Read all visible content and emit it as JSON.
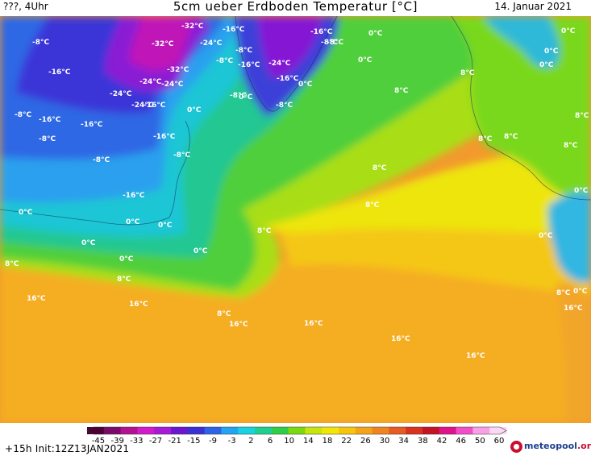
{
  "header": {
    "left_text": "???, 4Uhr",
    "title": "5cm ueber Erdboden Temperatur [°C]",
    "date": "14. Januar 2021"
  },
  "colorbar": {
    "ticks": [
      "-45",
      "-39",
      "-33",
      "-27",
      "-21",
      "-15",
      "-9",
      "-3",
      "2",
      "6",
      "10",
      "14",
      "18",
      "22",
      "26",
      "30",
      "34",
      "38",
      "42",
      "46",
      "50",
      "60"
    ],
    "colors": [
      "#4a0033",
      "#7a0a6a",
      "#b3118f",
      "#d21bc9",
      "#a71ad6",
      "#6b17d0",
      "#3b2fd6",
      "#2f63e6",
      "#22a4f0",
      "#18d2df",
      "#1fcf8f",
      "#2fce46",
      "#7cd80f",
      "#c6e410",
      "#f2e608",
      "#f6c60e",
      "#f4a41a",
      "#f0851f",
      "#e75c22",
      "#d8331f",
      "#c41424",
      "#e0148a",
      "#f24ec8",
      "#f7a0e6",
      "#fbd8f4"
    ]
  },
  "map_labels": [
    {
      "text": "-8°C"
    },
    {
      "text": "-16°C"
    },
    {
      "text": "-8°C"
    },
    {
      "text": "-16°C"
    },
    {
      "text": "-8°C"
    },
    {
      "text": "-16°C"
    },
    {
      "text": "-8°C"
    },
    {
      "text": "-32°C"
    },
    {
      "text": "-16°C"
    },
    {
      "text": "-32°C"
    },
    {
      "text": "-24°C"
    },
    {
      "text": "-8°C"
    },
    {
      "text": "-8°C"
    },
    {
      "text": "-32°C"
    },
    {
      "text": "-24°C"
    },
    {
      "text": "-24°C"
    },
    {
      "text": "-24°C"
    },
    {
      "text": "-16°C"
    },
    {
      "text": "-24°C"
    },
    {
      "text": "-16°C"
    },
    {
      "text": "-8°C"
    },
    {
      "text": "-16°C"
    },
    {
      "text": "-8°C"
    },
    {
      "text": "0°C"
    },
    {
      "text": "0°C"
    },
    {
      "text": "-16°C"
    },
    {
      "text": "-8°C"
    },
    {
      "text": "-24°C"
    },
    {
      "text": "-16°C"
    },
    {
      "text": "-8°C"
    },
    {
      "text": "0°C"
    },
    {
      "text": "0°C"
    },
    {
      "text": "8°C"
    },
    {
      "text": "-16°C"
    },
    {
      "text": "-8°C"
    },
    {
      "text": "0°C"
    },
    {
      "text": "0°C"
    },
    {
      "text": "0°C"
    },
    {
      "text": "8°C"
    },
    {
      "text": "0°C"
    },
    {
      "text": "8°C"
    },
    {
      "text": "8°C"
    },
    {
      "text": "8°C"
    },
    {
      "text": "8°C"
    },
    {
      "text": "8°C"
    },
    {
      "text": "0°C"
    },
    {
      "text": "0°C"
    },
    {
      "text": "0°C"
    },
    {
      "text": "0°C"
    },
    {
      "text": "0°C"
    },
    {
      "text": "8°C"
    },
    {
      "text": "0°C"
    },
    {
      "text": "8°C"
    },
    {
      "text": "8°C"
    },
    {
      "text": "16°C"
    },
    {
      "text": "16°C"
    },
    {
      "text": "8°C"
    },
    {
      "text": "16°C"
    },
    {
      "text": "16°C"
    },
    {
      "text": "16°C"
    },
    {
      "text": "16°C"
    },
    {
      "text": "16°C"
    },
    {
      "text": "8°C"
    },
    {
      "text": "0°C"
    },
    {
      "text": "0°C"
    },
    {
      "text": "0°C"
    },
    {
      "text": "8°C"
    }
  ],
  "footer": {
    "init_text": "+15h Init:12Z13JAN2021",
    "logo_text": "meteopool",
    "logo_suffix": ".org"
  }
}
